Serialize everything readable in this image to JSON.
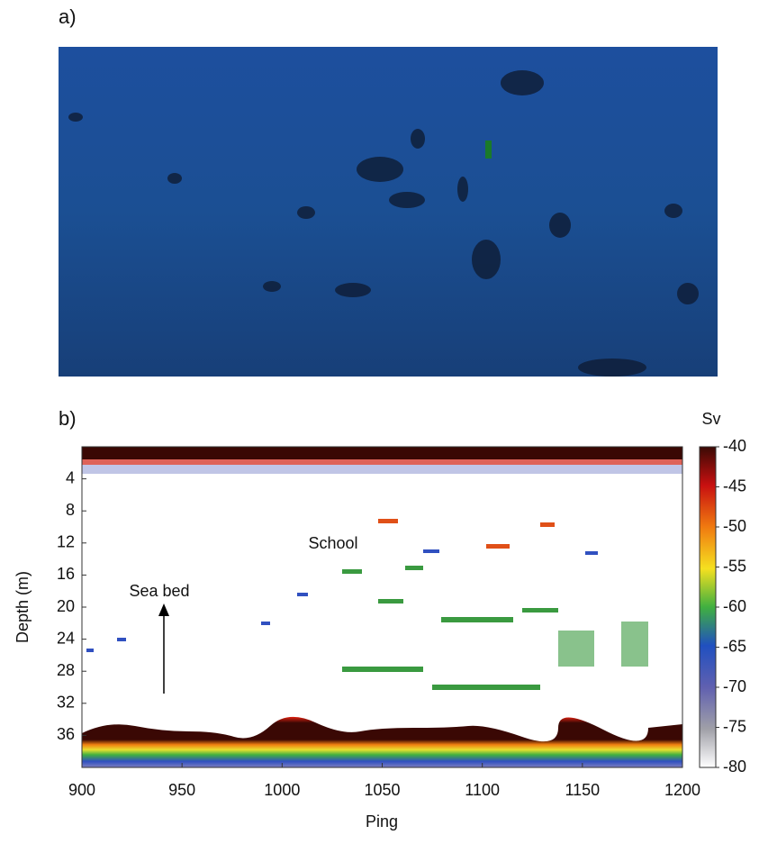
{
  "panel_a": {
    "label": "a)"
  },
  "chart_data": {
    "type": "echogram",
    "panel_label": "b)",
    "x_label": "Ping",
    "y_label": "Depth (m)",
    "xlim": [
      900,
      1200
    ],
    "xticks": [
      900,
      950,
      1000,
      1050,
      1100,
      1150,
      1200
    ],
    "ylim": [
      0,
      40
    ],
    "y_inverted": true,
    "yticks": [
      4,
      8,
      12,
      16,
      20,
      24,
      28,
      32,
      36
    ],
    "colorbar": {
      "label": "Sv",
      "lim": [
        -80,
        -40
      ],
      "ticks": [
        -40,
        -45,
        -50,
        -55,
        -60,
        -65,
        -70,
        -75,
        -80
      ]
    },
    "annotations": [
      {
        "text": "School"
      },
      {
        "text": "Sea bed"
      }
    ]
  }
}
